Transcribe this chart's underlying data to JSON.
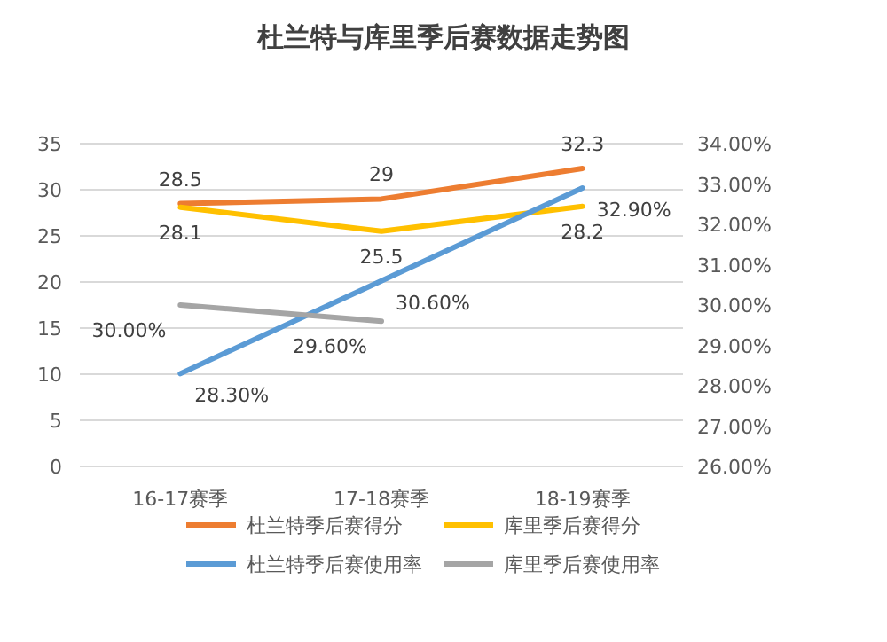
{
  "chart_data": {
    "type": "line",
    "title": "杜兰特与库里季后赛数据走势图",
    "categories": [
      "16-17赛季",
      "17-18赛季",
      "18-19赛季"
    ],
    "series": [
      {
        "name": "杜兰特季后赛得分",
        "color": "#ed7d31",
        "values": [
          28.5,
          29,
          32.3
        ],
        "value_labels": [
          "28.5",
          "29",
          "32.3"
        ]
      },
      {
        "name": "库里季后赛得分",
        "color": "#ffc000",
        "values": [
          28.1,
          25.5,
          28.2
        ],
        "value_labels": [
          "28.1",
          "25.5",
          "28.2"
        ]
      },
      {
        "name": "杜兰特季后赛使用率",
        "color": "#5b9bd5",
        "axis": "y2",
        "values": [
          28.3,
          30.6,
          32.9
        ],
        "value_labels": [
          "28.30%",
          "30.60%",
          "32.90%"
        ]
      },
      {
        "name": "库里季后赛使用率",
        "color": "#a5a5a5",
        "axis": "y2",
        "values": [
          30.0,
          29.6,
          null
        ],
        "value_labels": [
          "30.00%",
          "29.60%",
          null
        ]
      }
    ],
    "ylim": [
      0,
      35
    ],
    "yticks": [
      0,
      5,
      10,
      15,
      20,
      25,
      30,
      35
    ],
    "y2lim": [
      26,
      34
    ],
    "y2ticks": [
      {
        "value": 26,
        "label": "26.00%"
      },
      {
        "value": 27,
        "label": "27.00%"
      },
      {
        "value": 28,
        "label": "28.00%"
      },
      {
        "value": 29,
        "label": "29.00%"
      },
      {
        "value": 30,
        "label": "30.00%"
      },
      {
        "value": 31,
        "label": "31.00%"
      },
      {
        "value": 32,
        "label": "32.00%"
      },
      {
        "value": 33,
        "label": "33.00%"
      },
      {
        "value": 34,
        "label": "34.00%"
      }
    ],
    "grid": "y",
    "legend": "bottom",
    "marker": "none",
    "line_style": "solid"
  }
}
